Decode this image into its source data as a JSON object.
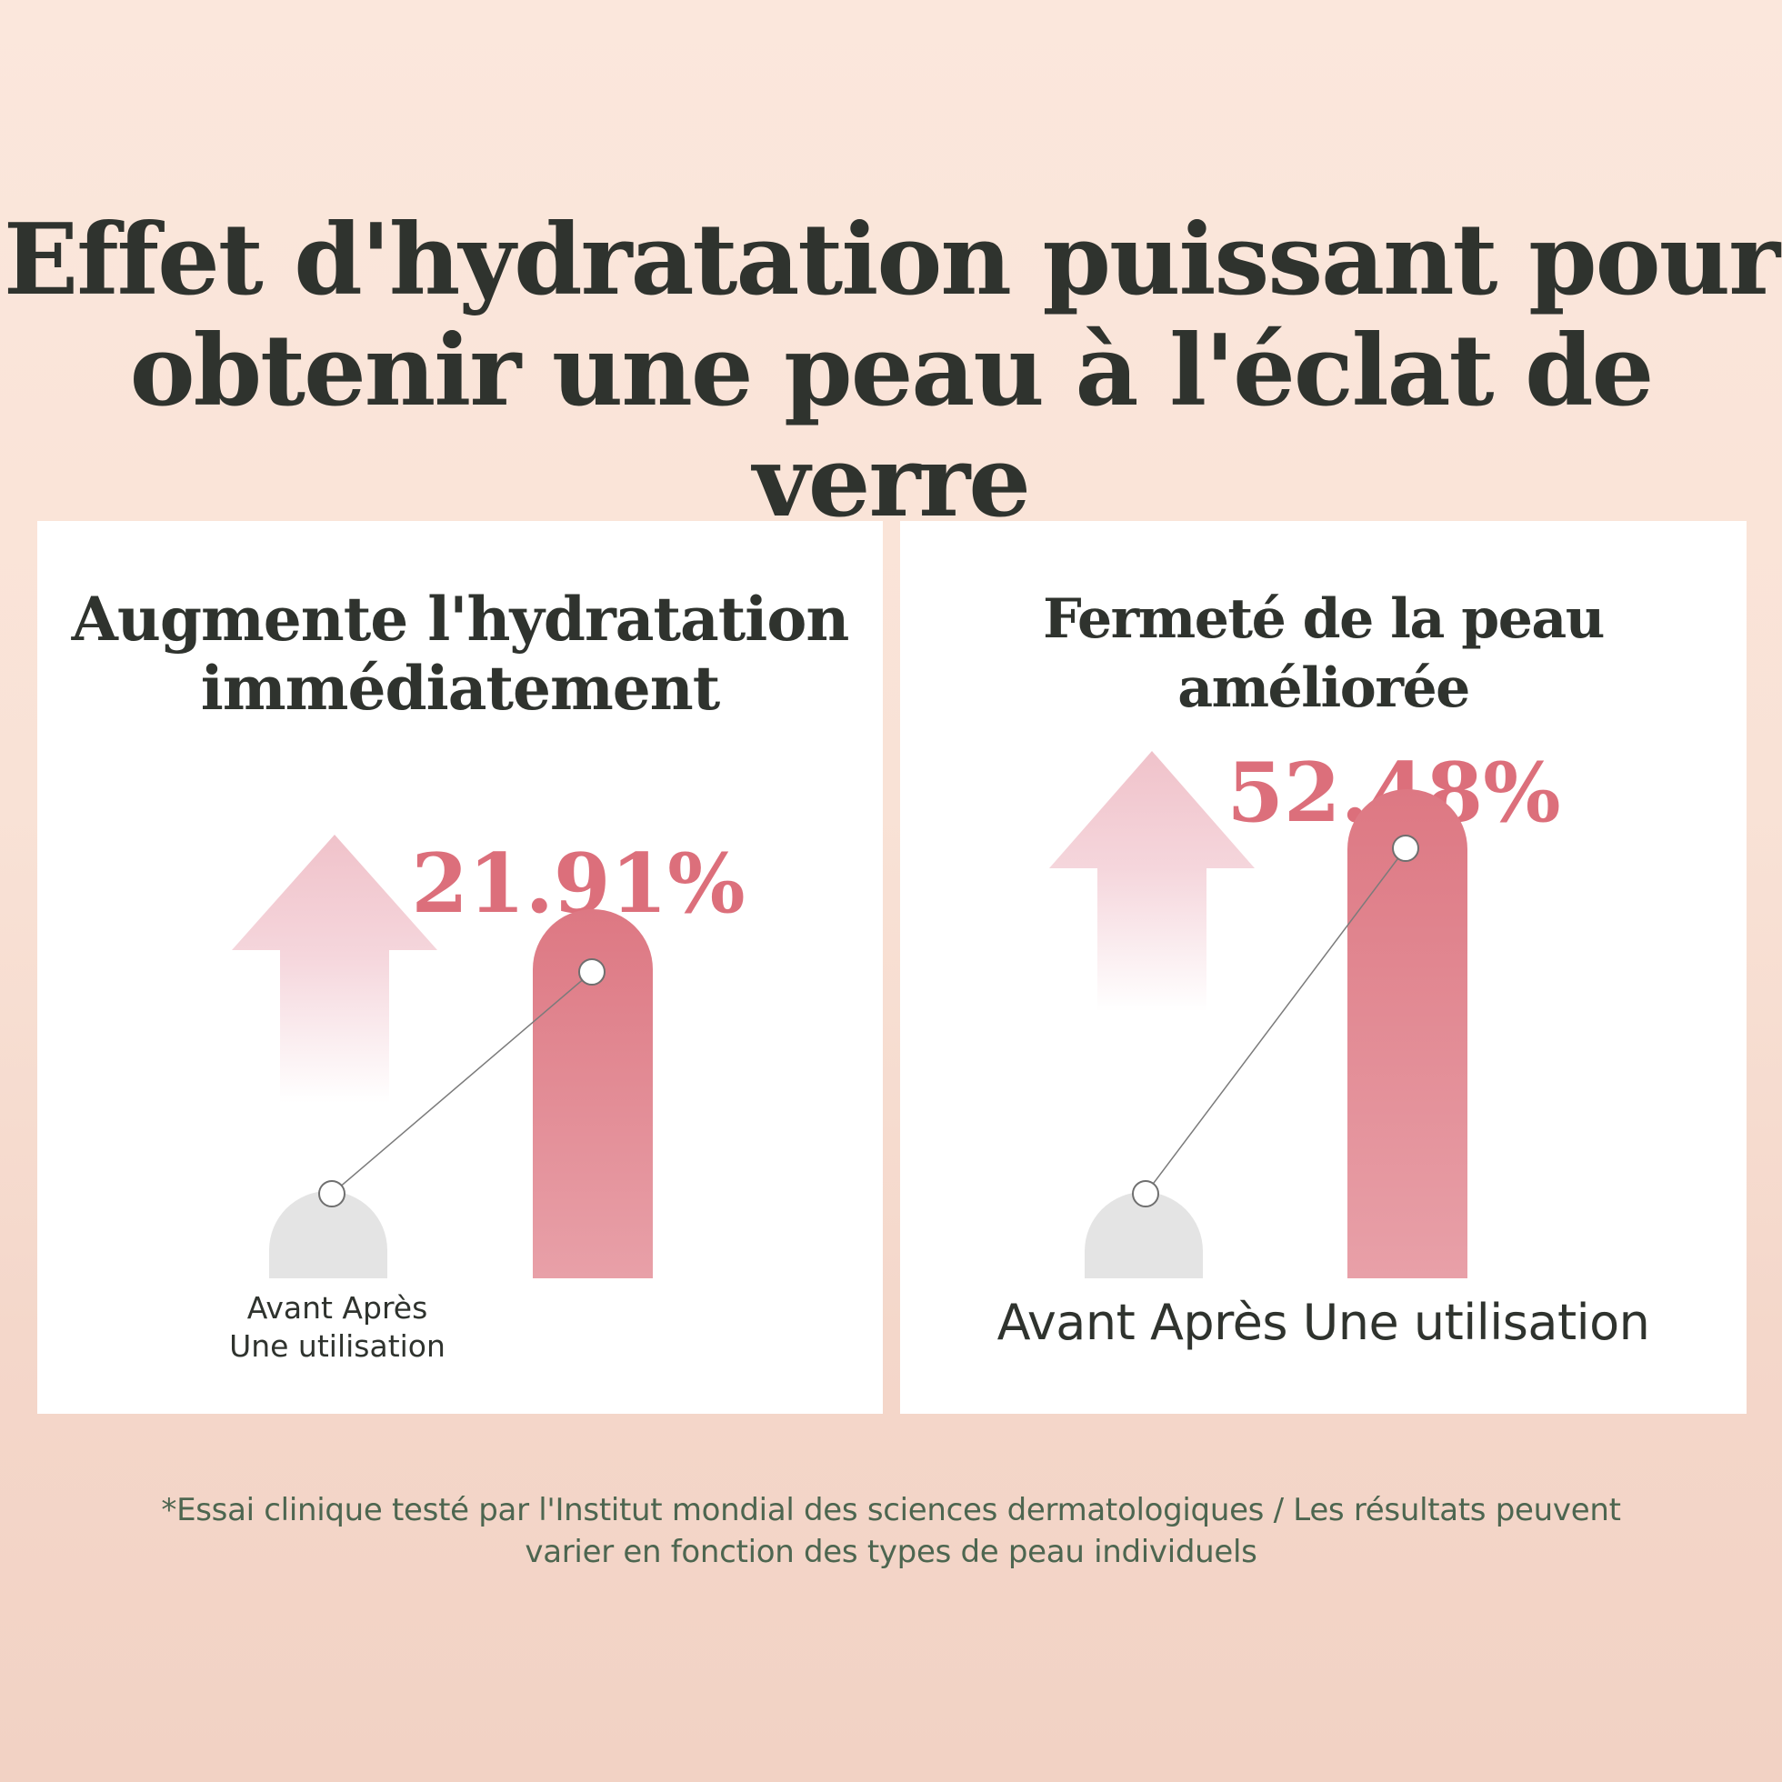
{
  "headline": {
    "line1": "Effet d'hydratation puissant pour",
    "line2": "obtenir une peau à l'éclat de verre"
  },
  "colors": {
    "accent": "#dc6f7b",
    "bar_after": "#e07f8a",
    "bar_before": "#e4e4e4",
    "arrow": "#f2c9d0",
    "text": "#2f332e",
    "footnote": "#4d6650"
  },
  "chart_data": [
    {
      "type": "bar",
      "title_line1": "Augmente l'hydratation",
      "title_line2": "immédiatement",
      "categories": [
        "Avant",
        "Après Une utilisation"
      ],
      "caption_line1": "Avant Après",
      "caption_line2": "Une utilisation",
      "increase_label": "21.91%",
      "increase_percent": 21.91
    },
    {
      "type": "bar",
      "title": "Fermeté de la peau améliorée",
      "categories": [
        "Avant",
        "Après Une utilisation"
      ],
      "caption": "Avant Après Une utilisation",
      "increase_label": "52.48%",
      "increase_percent": 52.48
    }
  ],
  "footnote": {
    "line1": "*Essai clinique testé par l'Institut mondial des sciences dermatologiques / Les résultats peuvent",
    "line2": "varier en fonction des types de peau individuels"
  }
}
